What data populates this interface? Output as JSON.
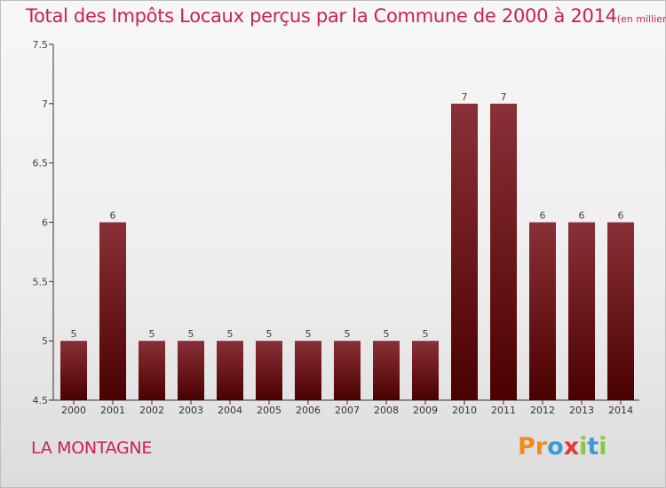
{
  "header": {
    "title": "Total des Impôts Locaux perçus par la Commune de 2000 à 2014",
    "unit": "(en milliers d'€)"
  },
  "commune": "LA MONTAGNE",
  "logo": {
    "letters": [
      "P",
      "r",
      "o",
      "x",
      "i",
      "t",
      "i"
    ],
    "colors": [
      "#f08c1e",
      "#f08c1e",
      "#3a9ad9",
      "#e03a3a",
      "#8cc43c",
      "#3a9ad9",
      "#8cc43c"
    ]
  },
  "colors": {
    "bar_top": "#8a3038",
    "bar_bottom": "#4a0000",
    "axis": "#333333",
    "title": "#cc1e5a"
  },
  "chart_data": {
    "type": "bar",
    "categories": [
      "2000",
      "2001",
      "2002",
      "2003",
      "2004",
      "2005",
      "2006",
      "2007",
      "2008",
      "2009",
      "2010",
      "2011",
      "2012",
      "2013",
      "2014"
    ],
    "values": [
      5,
      6,
      5,
      5,
      5,
      5,
      5,
      5,
      5,
      5,
      7,
      7,
      6,
      6,
      6
    ],
    "data_labels": [
      "5",
      "6",
      "5",
      "5",
      "5",
      "5",
      "5",
      "5",
      "5",
      "5",
      "7",
      "7",
      "6",
      "6",
      "6"
    ],
    "ylim": [
      4.5,
      7.5
    ],
    "yticks": [
      4.5,
      5,
      5.5,
      6,
      6.5,
      7,
      7.5
    ],
    "ytick_labels": [
      "4.5",
      "5",
      "5.5",
      "6",
      "6.5",
      "7",
      "7.5"
    ],
    "grid": false,
    "xlabel": "",
    "ylabel": ""
  }
}
